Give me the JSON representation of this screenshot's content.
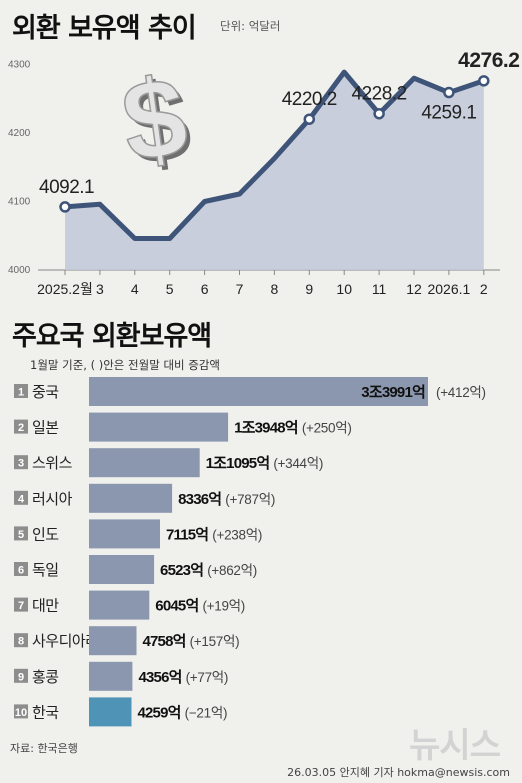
{
  "header": {
    "title": "외환 보유액 추이",
    "unit": "단위: 억달러"
  },
  "chart_data": [
    {
      "type": "area",
      "title": "외환 보유액 추이",
      "unit": "단위: 억달러",
      "categories": [
        "2025.2월",
        "3",
        "4",
        "5",
        "6",
        "7",
        "8",
        "9",
        "10",
        "11",
        "12",
        "2026.1",
        "2"
      ],
      "values": [
        4092.1,
        4096,
        4046,
        4046,
        4100,
        4111,
        4163,
        4220.2,
        4289,
        4228.2,
        4280,
        4259.1,
        4276.2
      ],
      "data_labels": [
        "4092.1",
        null,
        null,
        null,
        null,
        null,
        null,
        "4220.2",
        null,
        "4228.2",
        null,
        "4259.1",
        "4276.2"
      ],
      "yticks": [
        4000,
        4100,
        4200,
        4300
      ],
      "ylim": [
        4000,
        4330
      ],
      "grid": false
    },
    {
      "type": "bar",
      "title": "주요국 외환보유액",
      "subtitle": "1월말 기준, ( )안은 전월말 대비 증감액",
      "categories": [
        "중국",
        "일본",
        "스위스",
        "러시아",
        "인도",
        "독일",
        "대만",
        "사우디아라비아",
        "홍콩",
        "한국"
      ],
      "ranks": [
        "1",
        "2",
        "3",
        "4",
        "5",
        "6",
        "7",
        "8",
        "9",
        "10"
      ],
      "values": [
        33991,
        13948,
        11095,
        8336,
        7115,
        6523,
        6045,
        4758,
        4356,
        4259
      ],
      "value_labels": [
        "3조3991억",
        "1조3948억",
        "1조1095억",
        "8336억",
        "7115억",
        "6523억",
        "6045억",
        "4758억",
        "4356억",
        "4259억"
      ],
      "changes": [
        "(+412억)",
        "(+250억)",
        "(+344억)",
        "(+787억)",
        "(+238억)",
        "(+862억)",
        "(+19억)",
        "(+157억)",
        "(+77억)",
        "(−21억)"
      ],
      "bar_color": "#8b97ae",
      "highlight_color": "#4f94b6",
      "highlight_index": 9
    }
  ],
  "ranking": {
    "title": "주요국 외환보유액",
    "subtitle": "1월말 기준, ( )안은 전월말 대비 증감액"
  },
  "footer": {
    "source": "자료: 한국은행",
    "credit": "26.03.05 안지혜 기자 hokma@newsis.com",
    "logo": "뉴시스"
  },
  "icons": [
    "dollar-sign-icon"
  ],
  "colors": {
    "line": "#3e5478",
    "area": "#c2c8d8",
    "bar": "#8b97ae",
    "highlight": "#4f94b6",
    "rank_box": "#8d8d8d"
  }
}
